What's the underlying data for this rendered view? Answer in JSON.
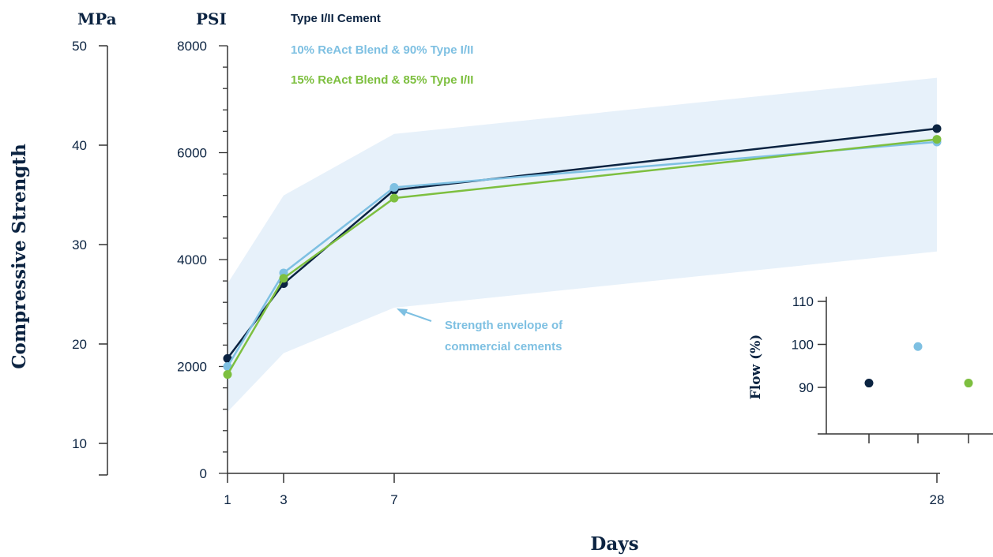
{
  "colors": {
    "navy": "#0b2341",
    "blue": "#7ec0e2",
    "green": "#7dbf3f",
    "envelope": "#e7f1fa",
    "axis": "#333333"
  },
  "labels": {
    "mpa_unit": "MPa",
    "psi_unit": "PSI",
    "ylabel": "Compressive Strength",
    "xlabel": "Days",
    "annotation_line1": "Strength envelope of",
    "annotation_line2": "commercial cements",
    "inset_ylabel": "Flow (%)"
  },
  "chart_data": [
    {
      "type": "line",
      "x_ticks": [
        1,
        3,
        7,
        28
      ],
      "xlabel": "Days",
      "ylabel": "Compressive Strength",
      "y_psi": {
        "range": [
          0,
          8000
        ],
        "ticks": [
          0,
          2000,
          4000,
          6000,
          8000
        ],
        "minor_step": 400
      },
      "y_mpa": {
        "ticks": [
          10,
          20,
          30,
          40,
          50
        ]
      },
      "series": [
        {
          "name": "Type I/II Cement",
          "color": "navy",
          "x": [
            1,
            3,
            7,
            28
          ],
          "y": [
            2150,
            3550,
            5300,
            6450
          ]
        },
        {
          "name": "10% ReAct Blend & 90% Type I/II",
          "color": "blue",
          "x": [
            1,
            3,
            7,
            28
          ],
          "y": [
            2000,
            3750,
            5350,
            6200
          ]
        },
        {
          "name": "15% ReAct Blend & 85% Type I/II",
          "color": "green",
          "x": [
            1,
            3,
            7,
            28
          ],
          "y": [
            1850,
            3650,
            5150,
            6250
          ]
        }
      ],
      "envelope": {
        "label": "Strength envelope of commercial cements",
        "x": [
          1,
          3,
          7,
          28
        ],
        "upper": [
          3550,
          5200,
          6350,
          7400
        ],
        "lower": [
          1150,
          2250,
          3100,
          4150
        ]
      }
    },
    {
      "type": "scatter",
      "ylabel": "Flow (%)",
      "y_ticks": [
        90,
        100,
        110
      ],
      "points": [
        {
          "series": "Type I/II Cement",
          "color": "navy",
          "y": 91
        },
        {
          "series": "10% ReAct Blend & 90% Type I/II",
          "color": "blue",
          "y": 99.5
        },
        {
          "series": "15% ReAct Blend & 85% Type I/II",
          "color": "green",
          "y": 91
        }
      ]
    }
  ]
}
